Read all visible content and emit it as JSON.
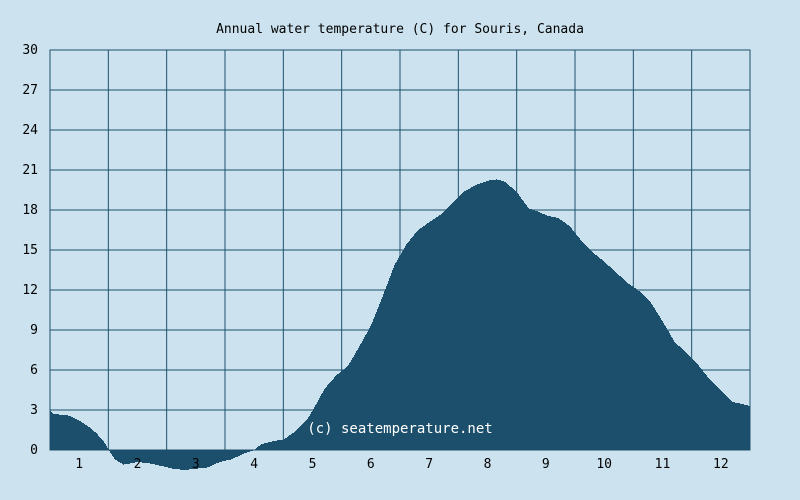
{
  "colors": {
    "background": "#cce3ef",
    "plot_background": "#cce3ef",
    "area_fill": "#1c4f6b",
    "grid": "#1c4f6b",
    "text": "#000000",
    "watermark": "#ffffff"
  },
  "chart_data": {
    "type": "area",
    "title": "Annual water temperature (C) for Souris, Canada",
    "xlabel": "",
    "ylabel": "",
    "x_tick_labels": [
      "1",
      "2",
      "3",
      "4",
      "5",
      "6",
      "7",
      "8",
      "9",
      "10",
      "11",
      "12"
    ],
    "y_ticks": [
      0,
      3,
      6,
      9,
      12,
      15,
      18,
      21,
      24,
      27,
      30
    ],
    "y_tick_labels": [
      "0",
      "3",
      "6",
      "9",
      "12",
      "15",
      "18",
      "21",
      "24",
      "27",
      "30"
    ],
    "xlim": [
      0.5,
      12.5
    ],
    "ylim": [
      0,
      30
    ],
    "grid": true,
    "watermark": "(c) seatemperature.net",
    "series": [
      {
        "x": [
          0.5,
          0.55,
          0.8,
          1.0,
          1.2,
          1.3,
          1.42,
          1.5,
          1.6,
          1.75,
          2.0,
          2.2,
          2.4,
          2.6,
          2.8,
          3.0,
          3.2,
          3.4,
          3.6,
          3.8,
          4.0,
          4.1,
          4.25,
          4.5,
          4.7,
          4.9,
          5.0,
          5.2,
          5.4,
          5.6,
          5.8,
          6.0,
          6.2,
          6.4,
          6.6,
          6.8,
          7.0,
          7.2,
          7.4,
          7.6,
          7.8,
          8.0,
          8.15,
          8.3,
          8.5,
          8.7,
          8.85,
          9.0,
          9.2,
          9.4,
          9.6,
          9.8,
          10.0,
          10.2,
          10.4,
          10.6,
          10.8,
          11.0,
          11.2,
          11.4,
          11.6,
          11.8,
          12.0,
          12.2,
          12.5
        ],
        "values": [
          2.9,
          2.7,
          2.6,
          2.2,
          1.6,
          1.2,
          0.6,
          0.0,
          -0.7,
          -1.1,
          -0.9,
          -1.0,
          -1.2,
          -1.4,
          -1.5,
          -1.4,
          -1.3,
          -0.9,
          -0.7,
          -0.3,
          0.0,
          0.4,
          0.6,
          0.8,
          1.4,
          2.3,
          3.0,
          4.6,
          5.6,
          6.3,
          7.8,
          9.4,
          11.6,
          13.9,
          15.4,
          16.5,
          17.1,
          17.7,
          18.6,
          19.4,
          19.9,
          20.2,
          20.3,
          20.1,
          19.3,
          18.1,
          17.9,
          17.6,
          17.4,
          16.8,
          15.7,
          14.8,
          14.1,
          13.3,
          12.5,
          11.9,
          11.0,
          9.6,
          8.1,
          7.3,
          6.4,
          5.3,
          4.4,
          3.6,
          3.3
        ]
      }
    ]
  }
}
